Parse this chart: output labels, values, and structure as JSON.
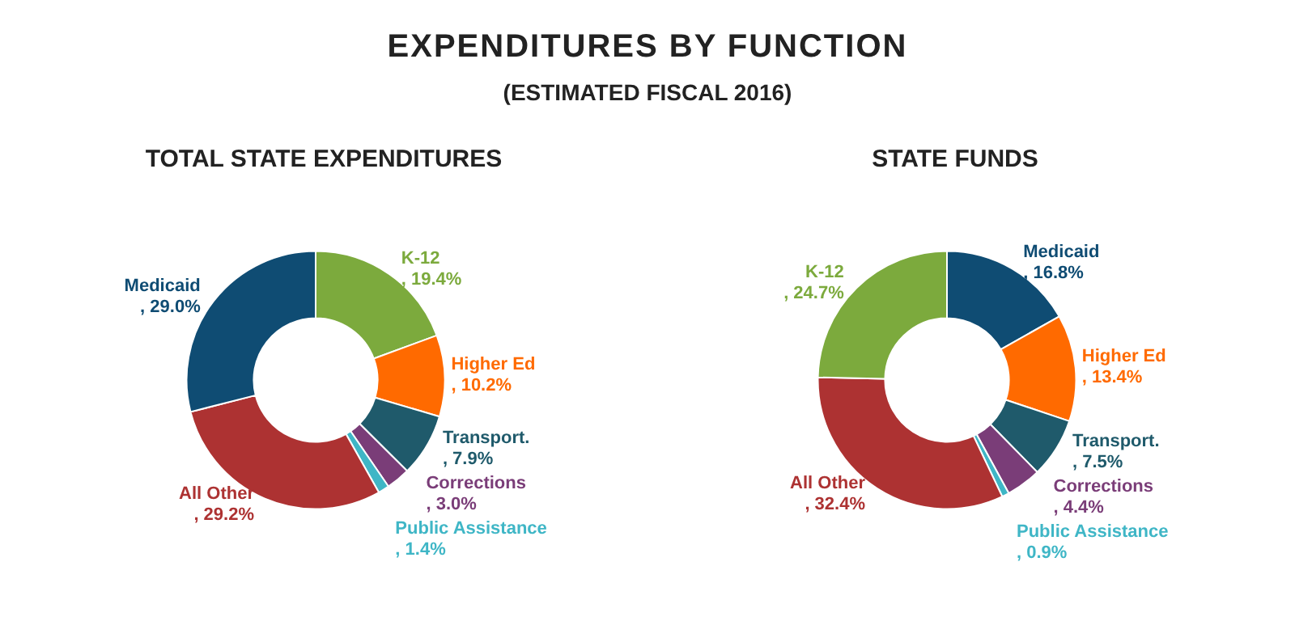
{
  "chart_data": [
    {
      "type": "donut",
      "title": "TOTAL STATE EXPENDITURES",
      "annotations": [
        "EXPENDITURES BY FUNCTION",
        "(ESTIMATED FISCAL 2016)"
      ],
      "categories": [
        "K-12",
        "Higher Ed",
        "Transport.",
        "Corrections",
        "Public Assistance",
        "All Other",
        "Medicaid"
      ],
      "values": [
        19.4,
        10.2,
        7.9,
        3.0,
        1.4,
        29.2,
        29.0
      ],
      "value_labels": [
        ", 19.4%",
        ", 10.2%",
        ", 7.9%",
        ", 3.0%",
        ", 1.4%",
        ", 29.2%",
        ", 29.0%"
      ],
      "colors": [
        "#7caa3d",
        "#ff6a00",
        "#1f5a6b",
        "#7a3d78",
        "#3fb6c6",
        "#ad3232",
        "#0f4c73"
      ],
      "legend": false
    },
    {
      "type": "donut",
      "title": "STATE FUNDS",
      "categories": [
        "Medicaid",
        "Higher Ed",
        "Transport.",
        "Corrections",
        "Public Assistance",
        "All Other",
        "K-12"
      ],
      "values": [
        16.8,
        13.4,
        7.5,
        4.4,
        0.9,
        32.4,
        24.7
      ],
      "value_labels": [
        ", 16.8%",
        ", 13.4%",
        ", 7.5%",
        ", 4.4%",
        ", 0.9%",
        ", 32.4%",
        ", 24.7%"
      ],
      "colors": [
        "#0f4c73",
        "#ff6a00",
        "#1f5a6b",
        "#7a3d78",
        "#3fb6c6",
        "#ad3232",
        "#7caa3d"
      ],
      "legend": false
    }
  ]
}
